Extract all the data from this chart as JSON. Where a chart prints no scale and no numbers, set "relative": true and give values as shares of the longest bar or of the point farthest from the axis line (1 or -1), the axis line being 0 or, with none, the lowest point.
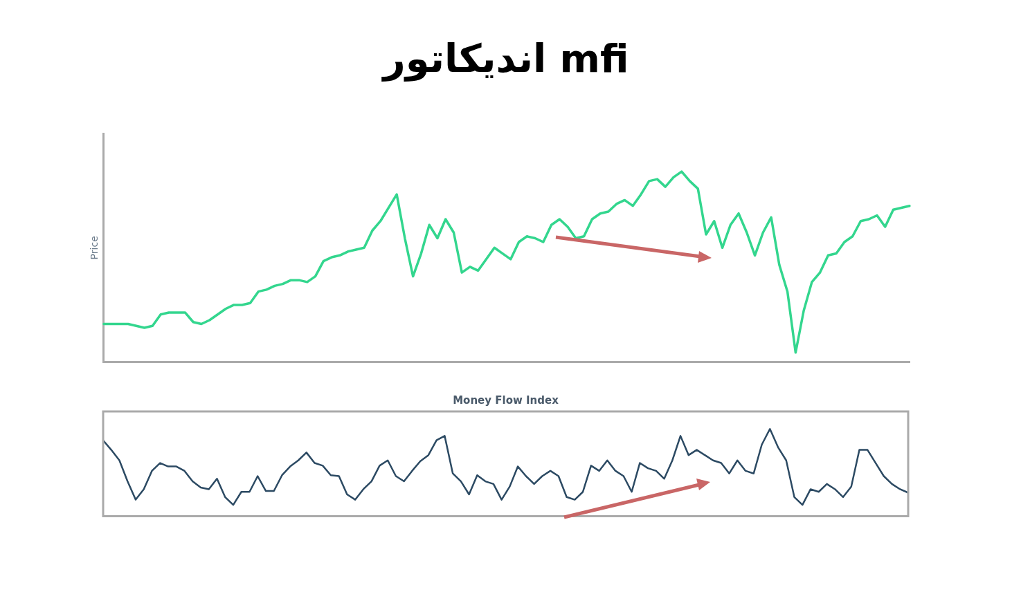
{
  "chart_data": [
    {
      "type": "line",
      "title": "اندیکاتور mfi",
      "ylabel": "Price",
      "relative": true,
      "marker": "none",
      "line_style": "solid",
      "categories": [
        null,
        null,
        null,
        null,
        null,
        null,
        null,
        null,
        null,
        null,
        null,
        null,
        null,
        null,
        null,
        null,
        null,
        null,
        null,
        null,
        null,
        null,
        null,
        null,
        null,
        null,
        null,
        null,
        null,
        null,
        null,
        null,
        null,
        null,
        null,
        null,
        null,
        null,
        null,
        null,
        null,
        null,
        null,
        null,
        null,
        null,
        null,
        null,
        null,
        null,
        null,
        null,
        null,
        null,
        null,
        null,
        null,
        null,
        null,
        null,
        null,
        null,
        null,
        null,
        null,
        null,
        null,
        null,
        null,
        null,
        null,
        null,
        null,
        null,
        null,
        null,
        null,
        null,
        null,
        null,
        null,
        null,
        null,
        null,
        null,
        null,
        null,
        null,
        null,
        null,
        null,
        null,
        null,
        null,
        null,
        null,
        null,
        null,
        null,
        null
      ],
      "series": [
        {
          "color": "#33d68e",
          "values": [
            0.2,
            0.2,
            0.2,
            0.2,
            0.19,
            0.18,
            0.19,
            0.25,
            0.26,
            0.26,
            0.26,
            0.21,
            0.2,
            0.22,
            0.25,
            0.28,
            0.3,
            0.3,
            0.31,
            0.37,
            0.38,
            0.4,
            0.41,
            0.43,
            0.43,
            0.42,
            0.45,
            0.53,
            0.55,
            0.56,
            0.58,
            0.59,
            0.6,
            0.69,
            0.74,
            0.81,
            0.88,
            0.65,
            0.45,
            0.57,
            0.72,
            0.65,
            0.75,
            0.68,
            0.47,
            0.5,
            0.48,
            0.54,
            0.6,
            0.57,
            0.54,
            0.63,
            0.66,
            0.65,
            0.63,
            0.72,
            0.75,
            0.71,
            0.65,
            0.66,
            0.75,
            0.78,
            0.79,
            0.83,
            0.85,
            0.82,
            0.88,
            0.95,
            0.96,
            0.92,
            0.97,
            1.0,
            0.95,
            0.91,
            0.67,
            0.74,
            0.6,
            0.72,
            0.78,
            0.68,
            0.56,
            0.68,
            0.76,
            0.51,
            0.37,
            0.05,
            0.27,
            0.42,
            0.47,
            0.56,
            0.57,
            0.63,
            0.66,
            0.74,
            0.75,
            0.77,
            0.71,
            0.8,
            0.81,
            0.82
          ]
        }
      ]
    },
    {
      "type": "line",
      "title": "Money Flow Index",
      "relative": true,
      "marker": "none",
      "line_style": "solid",
      "categories": [
        null,
        null,
        null,
        null,
        null,
        null,
        null,
        null,
        null,
        null,
        null,
        null,
        null,
        null,
        null,
        null,
        null,
        null,
        null,
        null,
        null,
        null,
        null,
        null,
        null,
        null,
        null,
        null,
        null,
        null,
        null,
        null,
        null,
        null,
        null,
        null,
        null,
        null,
        null,
        null,
        null,
        null,
        null,
        null,
        null,
        null,
        null,
        null,
        null,
        null,
        null,
        null,
        null,
        null,
        null,
        null,
        null,
        null,
        null,
        null,
        null,
        null,
        null,
        null,
        null,
        null,
        null,
        null,
        null,
        null,
        null,
        null,
        null,
        null,
        null,
        null,
        null,
        null,
        null,
        null,
        null,
        null,
        null,
        null,
        null,
        null,
        null,
        null,
        null,
        null,
        null,
        null,
        null,
        null,
        null,
        null,
        null,
        null,
        null,
        null
      ],
      "series": [
        {
          "color": "#2c4a63",
          "values": [
            0.87,
            0.76,
            0.64,
            0.4,
            0.19,
            0.31,
            0.52,
            0.61,
            0.57,
            0.57,
            0.52,
            0.4,
            0.33,
            0.31,
            0.43,
            0.22,
            0.13,
            0.28,
            0.28,
            0.46,
            0.29,
            0.29,
            0.47,
            0.57,
            0.64,
            0.73,
            0.61,
            0.58,
            0.47,
            0.46,
            0.25,
            0.19,
            0.31,
            0.4,
            0.58,
            0.64,
            0.46,
            0.4,
            0.52,
            0.63,
            0.7,
            0.87,
            0.92,
            0.49,
            0.4,
            0.25,
            0.47,
            0.4,
            0.37,
            0.19,
            0.34,
            0.57,
            0.46,
            0.37,
            0.46,
            0.52,
            0.46,
            0.22,
            0.19,
            0.28,
            0.58,
            0.52,
            0.64,
            0.52,
            0.46,
            0.28,
            0.61,
            0.55,
            0.52,
            0.43,
            0.64,
            0.92,
            0.7,
            0.76,
            0.7,
            0.64,
            0.61,
            0.49,
            0.64,
            0.52,
            0.49,
            0.82,
            1.0,
            0.79,
            0.64,
            0.22,
            0.13,
            0.31,
            0.28,
            0.37,
            0.31,
            0.22,
            0.34,
            0.76,
            0.76,
            0.61,
            0.46,
            0.37,
            0.31,
            0.27
          ]
        }
      ]
    }
  ]
}
